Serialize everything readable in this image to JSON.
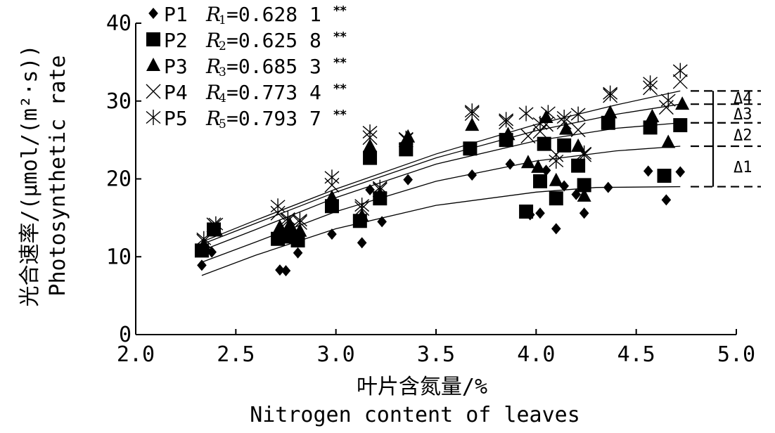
{
  "chart_data": {
    "type": "scatter",
    "title": "",
    "xlabel_cn": "叶片含氮量/%",
    "xlabel_en": "Nitrogen content of leaves",
    "ylabel_cn": "光合速率/(μmol/(m²·s))",
    "ylabel_en": "Photosynthetic rate",
    "xlim": [
      2.0,
      5.0
    ],
    "ylim": [
      0,
      40
    ],
    "x_ticks": [
      "2.0",
      "2.5",
      "3.0",
      "3.5",
      "4.0",
      "4.5",
      "5.0"
    ],
    "y_ticks": [
      "0",
      "10",
      "20",
      "30",
      "40"
    ],
    "grid": false,
    "legend_position": "top-left",
    "series": [
      {
        "name": "P1",
        "marker": "diamond",
        "r_label": "R",
        "r_sub": "1",
        "r_value": "=0.628 1",
        "significance": "**",
        "points": [
          [
            2.33,
            8.9
          ],
          [
            2.38,
            10.6
          ],
          [
            2.72,
            8.3
          ],
          [
            2.75,
            8.2
          ],
          [
            2.81,
            10.5
          ],
          [
            2.98,
            12.9
          ],
          [
            3.13,
            11.8
          ],
          [
            3.17,
            18.6
          ],
          [
            3.23,
            14.5
          ],
          [
            3.36,
            19.9
          ],
          [
            3.68,
            20.5
          ],
          [
            3.87,
            21.9
          ],
          [
            3.97,
            15.4
          ],
          [
            4.02,
            15.6
          ],
          [
            4.05,
            21.1
          ],
          [
            4.1,
            13.6
          ],
          [
            4.14,
            19.1
          ],
          [
            4.2,
            18.0
          ],
          [
            4.24,
            15.6
          ],
          [
            4.36,
            18.9
          ],
          [
            4.56,
            21.0
          ],
          [
            4.65,
            17.3
          ],
          [
            4.72,
            20.9
          ]
        ]
      },
      {
        "name": "P2",
        "marker": "square",
        "r_label": "R",
        "r_sub": "2",
        "r_value": "=0.625 8",
        "significance": "**",
        "points": [
          [
            2.33,
            10.8
          ],
          [
            2.39,
            13.5
          ],
          [
            2.71,
            12.3
          ],
          [
            2.77,
            12.6
          ],
          [
            2.81,
            12.1
          ],
          [
            2.98,
            16.5
          ],
          [
            3.12,
            14.6
          ],
          [
            3.17,
            22.7
          ],
          [
            3.22,
            17.5
          ],
          [
            3.35,
            23.8
          ],
          [
            3.67,
            23.9
          ],
          [
            3.85,
            25.0
          ],
          [
            3.95,
            15.8
          ],
          [
            4.02,
            19.7
          ],
          [
            4.04,
            24.5
          ],
          [
            4.1,
            17.5
          ],
          [
            4.14,
            24.3
          ],
          [
            4.21,
            21.7
          ],
          [
            4.24,
            19.2
          ],
          [
            4.36,
            27.2
          ],
          [
            4.57,
            26.6
          ],
          [
            4.64,
            20.4
          ],
          [
            4.72,
            26.9
          ]
        ]
      },
      {
        "name": "P3",
        "marker": "triangle",
        "r_label": "R",
        "r_sub": "3",
        "r_value": "=0.685 3",
        "significance": "**",
        "points": [
          [
            2.34,
            11.5
          ],
          [
            2.4,
            13.4
          ],
          [
            2.72,
            13.8
          ],
          [
            2.77,
            14.1
          ],
          [
            2.82,
            13.3
          ],
          [
            2.98,
            17.6
          ],
          [
            3.13,
            15.2
          ],
          [
            3.17,
            24.2
          ],
          [
            3.22,
            18.0
          ],
          [
            3.36,
            25.4
          ],
          [
            3.68,
            26.9
          ],
          [
            3.86,
            25.7
          ],
          [
            3.96,
            22.1
          ],
          [
            4.01,
            21.5
          ],
          [
            4.05,
            27.9
          ],
          [
            4.1,
            19.8
          ],
          [
            4.15,
            26.4
          ],
          [
            4.21,
            24.2
          ],
          [
            4.24,
            17.8
          ],
          [
            4.37,
            28.5
          ],
          [
            4.58,
            28.0
          ],
          [
            4.66,
            24.7
          ],
          [
            4.73,
            29.6
          ]
        ]
      },
      {
        "name": "P4",
        "marker": "x",
        "r_label": "R",
        "r_sub": "4",
        "r_value": "=0.773 4",
        "significance": "**",
        "points": [
          [
            2.34,
            12.0
          ],
          [
            2.39,
            14.1
          ],
          [
            2.71,
            15.6
          ],
          [
            2.76,
            14.6
          ],
          [
            2.82,
            14.4
          ],
          [
            2.98,
            19.2
          ],
          [
            3.13,
            16.2
          ],
          [
            3.17,
            25.3
          ],
          [
            3.22,
            18.6
          ],
          [
            3.35,
            25.0
          ],
          [
            3.68,
            28.4
          ],
          [
            3.85,
            27.3
          ],
          [
            3.96,
            25.5
          ],
          [
            4.02,
            26.1
          ],
          [
            4.05,
            27.0
          ],
          [
            4.1,
            23.1
          ],
          [
            4.14,
            27.3
          ],
          [
            4.21,
            26.3
          ],
          [
            4.24,
            23.1
          ],
          [
            4.37,
            30.7
          ],
          [
            4.57,
            31.7
          ],
          [
            4.65,
            29.2
          ],
          [
            4.72,
            32.5
          ]
        ]
      },
      {
        "name": "P5",
        "marker": "star",
        "r_label": "R",
        "r_sub": "5",
        "r_value": "=0.793 7",
        "significance": "**",
        "points": [
          [
            2.34,
            12.3
          ],
          [
            2.4,
            14.2
          ],
          [
            2.71,
            16.5
          ],
          [
            2.76,
            14.9
          ],
          [
            2.82,
            14.7
          ],
          [
            2.98,
            20.2
          ],
          [
            3.13,
            16.6
          ],
          [
            3.17,
            26.0
          ],
          [
            3.22,
            18.9
          ],
          [
            3.35,
            25.2
          ],
          [
            3.68,
            28.7
          ],
          [
            3.85,
            27.6
          ],
          [
            3.95,
            28.4
          ],
          [
            4.02,
            27.1
          ],
          [
            4.06,
            28.5
          ],
          [
            4.1,
            22.3
          ],
          [
            4.14,
            27.9
          ],
          [
            4.21,
            28.3
          ],
          [
            4.24,
            23.3
          ],
          [
            4.37,
            31.0
          ],
          [
            4.57,
            32.3
          ],
          [
            4.66,
            30.1
          ],
          [
            4.72,
            33.9
          ]
        ]
      }
    ],
    "fit_curves": [
      {
        "series": "P1",
        "points": [
          [
            2.33,
            7.6
          ],
          [
            2.6,
            10.2
          ],
          [
            3.0,
            13.6
          ],
          [
            3.5,
            16.6
          ],
          [
            4.0,
            18.3
          ],
          [
            4.3,
            18.9
          ],
          [
            4.72,
            19.0
          ]
        ]
      },
      {
        "series": "P2",
        "points": [
          [
            2.33,
            9.3
          ],
          [
            2.6,
            11.9
          ],
          [
            3.0,
            15.8
          ],
          [
            3.5,
            19.7
          ],
          [
            4.0,
            22.3
          ],
          [
            4.4,
            23.6
          ],
          [
            4.72,
            24.2
          ]
        ]
      },
      {
        "series": "P3",
        "points": [
          [
            2.33,
            10.8
          ],
          [
            2.6,
            13.5
          ],
          [
            3.0,
            17.6
          ],
          [
            3.5,
            21.9
          ],
          [
            4.0,
            24.9
          ],
          [
            4.4,
            26.5
          ],
          [
            4.72,
            27.2
          ]
        ]
      },
      {
        "series": "P4",
        "points": [
          [
            2.33,
            11.6
          ],
          [
            2.6,
            14.3
          ],
          [
            3.0,
            18.3
          ],
          [
            3.5,
            22.7
          ],
          [
            4.0,
            26.2
          ],
          [
            4.4,
            28.3
          ],
          [
            4.72,
            29.6
          ]
        ]
      },
      {
        "series": "P5",
        "points": [
          [
            2.33,
            11.9
          ],
          [
            2.6,
            14.7
          ],
          [
            3.0,
            18.7
          ],
          [
            3.5,
            23.2
          ],
          [
            4.0,
            27.0
          ],
          [
            4.4,
            29.5
          ],
          [
            4.72,
            31.3
          ]
        ]
      }
    ],
    "annotations": {
      "delta_labels": [
        "Δ4",
        "Δ3",
        "Δ2",
        "Δ1"
      ],
      "reference_levels": [
        19.0,
        24.2,
        27.2,
        29.6,
        31.3
      ]
    }
  }
}
